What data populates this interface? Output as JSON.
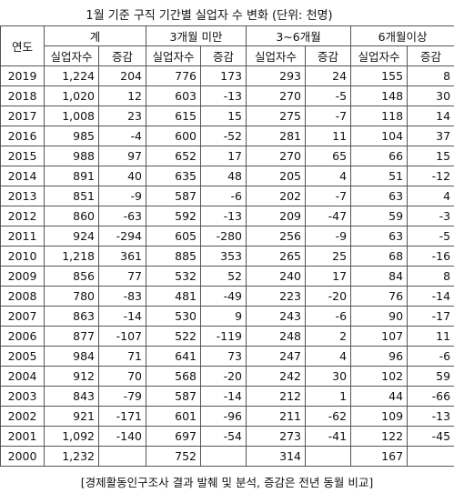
{
  "title": "1월 기준 구직 기간별 실업자 수 변화 (단위: 천명)",
  "table": {
    "corner": "연도",
    "groups": [
      "계",
      "3개월 미만",
      "3~6개월",
      "6개월이상"
    ],
    "subheaders": [
      "실업자수",
      "증감",
      "실업자수",
      "증감",
      "실업자수",
      "증감",
      "실업자수",
      "증감"
    ],
    "rows": [
      [
        "2019",
        "1,224",
        "204",
        "776",
        "173",
        "293",
        "24",
        "155",
        "8"
      ],
      [
        "2018",
        "1,020",
        "12",
        "603",
        "-13",
        "270",
        "-5",
        "148",
        "30"
      ],
      [
        "2017",
        "1,008",
        "23",
        "615",
        "15",
        "275",
        "-7",
        "118",
        "14"
      ],
      [
        "2016",
        "985",
        "-4",
        "600",
        "-52",
        "281",
        "11",
        "104",
        "37"
      ],
      [
        "2015",
        "988",
        "97",
        "652",
        "17",
        "270",
        "65",
        "66",
        "15"
      ],
      [
        "2014",
        "891",
        "40",
        "635",
        "48",
        "205",
        "4",
        "51",
        "-12"
      ],
      [
        "2013",
        "851",
        "-9",
        "587",
        "-6",
        "202",
        "-7",
        "63",
        "4"
      ],
      [
        "2012",
        "860",
        "-63",
        "592",
        "-13",
        "209",
        "-47",
        "59",
        "-3"
      ],
      [
        "2011",
        "924",
        "-294",
        "605",
        "-280",
        "256",
        "-9",
        "63",
        "-5"
      ],
      [
        "2010",
        "1,218",
        "361",
        "885",
        "353",
        "265",
        "25",
        "68",
        "-16"
      ],
      [
        "2009",
        "856",
        "77",
        "532",
        "52",
        "240",
        "17",
        "84",
        "8"
      ],
      [
        "2008",
        "780",
        "-83",
        "481",
        "-49",
        "223",
        "-20",
        "76",
        "-14"
      ],
      [
        "2007",
        "863",
        "-14",
        "530",
        "9",
        "243",
        "-6",
        "90",
        "-17"
      ],
      [
        "2006",
        "877",
        "-107",
        "522",
        "-119",
        "248",
        "2",
        "107",
        "11"
      ],
      [
        "2005",
        "984",
        "71",
        "641",
        "73",
        "247",
        "4",
        "96",
        "-6"
      ],
      [
        "2004",
        "912",
        "70",
        "568",
        "-20",
        "242",
        "30",
        "102",
        "59"
      ],
      [
        "2003",
        "843",
        "-79",
        "587",
        "-14",
        "212",
        "1",
        "44",
        "-66"
      ],
      [
        "2002",
        "921",
        "-171",
        "601",
        "-96",
        "211",
        "-62",
        "109",
        "-13"
      ],
      [
        "2001",
        "1,092",
        "-140",
        "697",
        "-54",
        "273",
        "-41",
        "122",
        "-45"
      ],
      [
        "2000",
        "1,232",
        null,
        "752",
        null,
        "314",
        null,
        "167",
        null
      ]
    ]
  },
  "footer": "[경제활동인구조사 결과 발췌 및 분석, 증감은 전년 동월 비교]"
}
